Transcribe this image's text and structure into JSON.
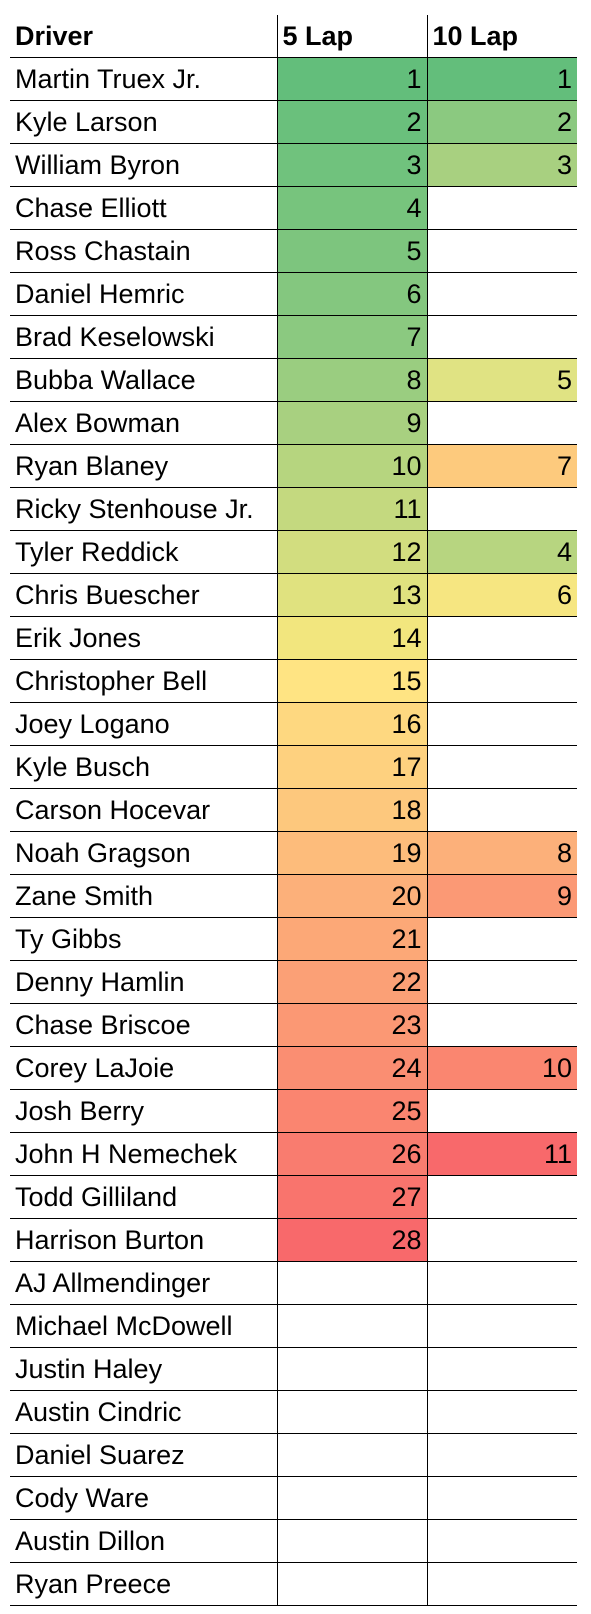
{
  "headers": [
    "Driver",
    "5 Lap",
    "10 Lap"
  ],
  "colors": {
    "r1": "#63be7b",
    "r2": "#6ac07c",
    "r3": "#70c27d",
    "r4": "#77c47d",
    "r5": "#7dc57e",
    "r6": "#84c77f",
    "r7": "#8bc980",
    "r8": "#9acd80",
    "r9": "#a8d080",
    "r10": "#b6d57f",
    "r11": "#c4d97f",
    "r12": "#d2dd7f",
    "r13": "#e0e27f",
    "r14": "#f2e67e",
    "r15": "#ffe483",
    "r16": "#fed880",
    "r17": "#fed17f",
    "r18": "#fdc87d",
    "r19": "#fdbc7b",
    "r20": "#fcb07a",
    "r21": "#fca877",
    "r22": "#fba076",
    "r23": "#fb9874",
    "r24": "#fa8e72",
    "r25": "#fa8570",
    "r26": "#f97c6f",
    "r27": "#f9746d",
    "r28": "#f8696b",
    "t1": "#63be7b",
    "t2": "#8bc980",
    "t3": "#a8d080",
    "t4": "#b7d580",
    "t5": "#e0e383",
    "t6": "#f6e681",
    "t7": "#fdca7d",
    "t8": "#fcb07a",
    "t9": "#fb9975",
    "t10": "#fa8670",
    "t11": "#f8696b"
  },
  "rows": [
    {
      "driver": "Martin Truex Jr.",
      "five": "1",
      "five_color": "#63be7b",
      "ten": "1",
      "ten_color": "#63be7b"
    },
    {
      "driver": "Kyle Larson",
      "five": "2",
      "five_color": "#6ac07c",
      "ten": "2",
      "ten_color": "#8bc980"
    },
    {
      "driver": "William Byron",
      "five": "3",
      "five_color": "#70c27d",
      "ten": "3",
      "ten_color": "#a8d080"
    },
    {
      "driver": "Chase Elliott",
      "five": "4",
      "five_color": "#77c47d",
      "ten": "",
      "ten_color": ""
    },
    {
      "driver": "Ross Chastain",
      "five": "5",
      "five_color": "#7dc57e",
      "ten": "",
      "ten_color": ""
    },
    {
      "driver": "Daniel Hemric",
      "five": "6",
      "five_color": "#84c77f",
      "ten": "",
      "ten_color": ""
    },
    {
      "driver": "Brad Keselowski",
      "five": "7",
      "five_color": "#8bc980",
      "ten": "",
      "ten_color": ""
    },
    {
      "driver": "Bubba Wallace",
      "five": "8",
      "five_color": "#9acd80",
      "ten": "5",
      "ten_color": "#e0e383"
    },
    {
      "driver": "Alex Bowman",
      "five": "9",
      "five_color": "#a8d080",
      "ten": "",
      "ten_color": ""
    },
    {
      "driver": "Ryan Blaney",
      "five": "10",
      "five_color": "#b6d57f",
      "ten": "7",
      "ten_color": "#fdca7d"
    },
    {
      "driver": "Ricky Stenhouse Jr.",
      "five": "11",
      "five_color": "#c4d97f",
      "ten": "",
      "ten_color": ""
    },
    {
      "driver": "Tyler Reddick",
      "five": "12",
      "five_color": "#d2dd7f",
      "ten": "4",
      "ten_color": "#b7d580"
    },
    {
      "driver": "Chris Buescher",
      "five": "13",
      "five_color": "#e0e27f",
      "ten": "6",
      "ten_color": "#f6e681"
    },
    {
      "driver": "Erik Jones",
      "five": "14",
      "five_color": "#f2e67e",
      "ten": "",
      "ten_color": ""
    },
    {
      "driver": "Christopher Bell",
      "five": "15",
      "five_color": "#ffe483",
      "ten": "",
      "ten_color": ""
    },
    {
      "driver": "Joey Logano",
      "five": "16",
      "five_color": "#fed880",
      "ten": "",
      "ten_color": ""
    },
    {
      "driver": "Kyle Busch",
      "five": "17",
      "five_color": "#fed17f",
      "ten": "",
      "ten_color": ""
    },
    {
      "driver": "Carson Hocevar",
      "five": "18",
      "five_color": "#fdc87d",
      "ten": "",
      "ten_color": ""
    },
    {
      "driver": "Noah Gragson",
      "five": "19",
      "five_color": "#fdbc7b",
      "ten": "8",
      "ten_color": "#fcb07a"
    },
    {
      "driver": "Zane Smith",
      "five": "20",
      "five_color": "#fcb07a",
      "ten": "9",
      "ten_color": "#fb9975"
    },
    {
      "driver": "Ty Gibbs",
      "five": "21",
      "five_color": "#fca877",
      "ten": "",
      "ten_color": ""
    },
    {
      "driver": "Denny Hamlin",
      "five": "22",
      "five_color": "#fba076",
      "ten": "",
      "ten_color": ""
    },
    {
      "driver": "Chase Briscoe",
      "five": "23",
      "five_color": "#fb9874",
      "ten": "",
      "ten_color": ""
    },
    {
      "driver": "Corey LaJoie",
      "five": "24",
      "five_color": "#fa8e72",
      "ten": "10",
      "ten_color": "#fa8670"
    },
    {
      "driver": "Josh Berry",
      "five": "25",
      "five_color": "#fa8570",
      "ten": "",
      "ten_color": ""
    },
    {
      "driver": "John H Nemechek",
      "five": "26",
      "five_color": "#f97c6f",
      "ten": "11",
      "ten_color": "#f8696b"
    },
    {
      "driver": "Todd Gilliland",
      "five": "27",
      "five_color": "#f9746d",
      "ten": "",
      "ten_color": ""
    },
    {
      "driver": "Harrison Burton",
      "five": "28",
      "five_color": "#f8696b",
      "ten": "",
      "ten_color": ""
    },
    {
      "driver": "AJ Allmendinger",
      "five": "",
      "five_color": "",
      "ten": "",
      "ten_color": ""
    },
    {
      "driver": "Michael McDowell",
      "five": "",
      "five_color": "",
      "ten": "",
      "ten_color": ""
    },
    {
      "driver": "Justin Haley",
      "five": "",
      "five_color": "",
      "ten": "",
      "ten_color": ""
    },
    {
      "driver": "Austin Cindric",
      "five": "",
      "five_color": "",
      "ten": "",
      "ten_color": ""
    },
    {
      "driver": "Daniel Suarez",
      "five": "",
      "five_color": "",
      "ten": "",
      "ten_color": ""
    },
    {
      "driver": "Cody Ware",
      "five": "",
      "five_color": "",
      "ten": "",
      "ten_color": ""
    },
    {
      "driver": "Austin Dillon",
      "five": "",
      "five_color": "",
      "ten": "",
      "ten_color": ""
    },
    {
      "driver": "Ryan Preece",
      "five": "",
      "five_color": "",
      "ten": "",
      "ten_color": ""
    }
  ]
}
